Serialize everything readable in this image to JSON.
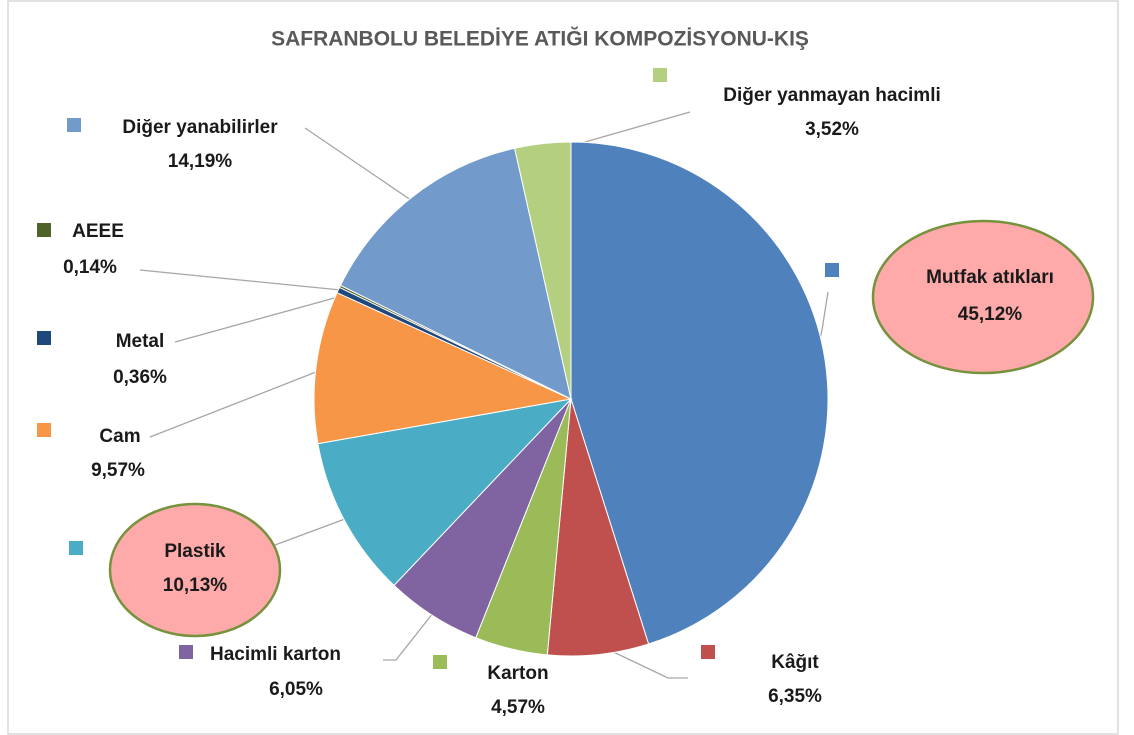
{
  "chart_data": {
    "type": "pie",
    "title": "SAFRANBOLU BELEDİYE ATIĞI KOMPOZİSYONU-KIŞ",
    "categories": [
      "Mutfak atıkları",
      "Kâğıt",
      "Karton",
      "Hacimli karton",
      "Plastik",
      "Cam",
      "Metal",
      "AEEE",
      "Diğer yanabilirler",
      "Diğer yanmayan hacimli"
    ],
    "values": [
      45.12,
      6.35,
      4.57,
      6.05,
      10.13,
      9.57,
      0.36,
      0.14,
      14.19,
      3.52
    ],
    "value_labels": [
      "45,12%",
      "6,35%",
      "4,57%",
      "6,05%",
      "10,13%",
      "9,57%",
      "0,36%",
      "0,14%",
      "14,19%",
      "3,52%"
    ],
    "colors": [
      "#4f81bd",
      "#c0504d",
      "#9bbb59",
      "#8064a2",
      "#4bacc6",
      "#f79646",
      "#1f497d",
      "#4f6228",
      "#729aca",
      "#b3cf7f"
    ]
  }
}
